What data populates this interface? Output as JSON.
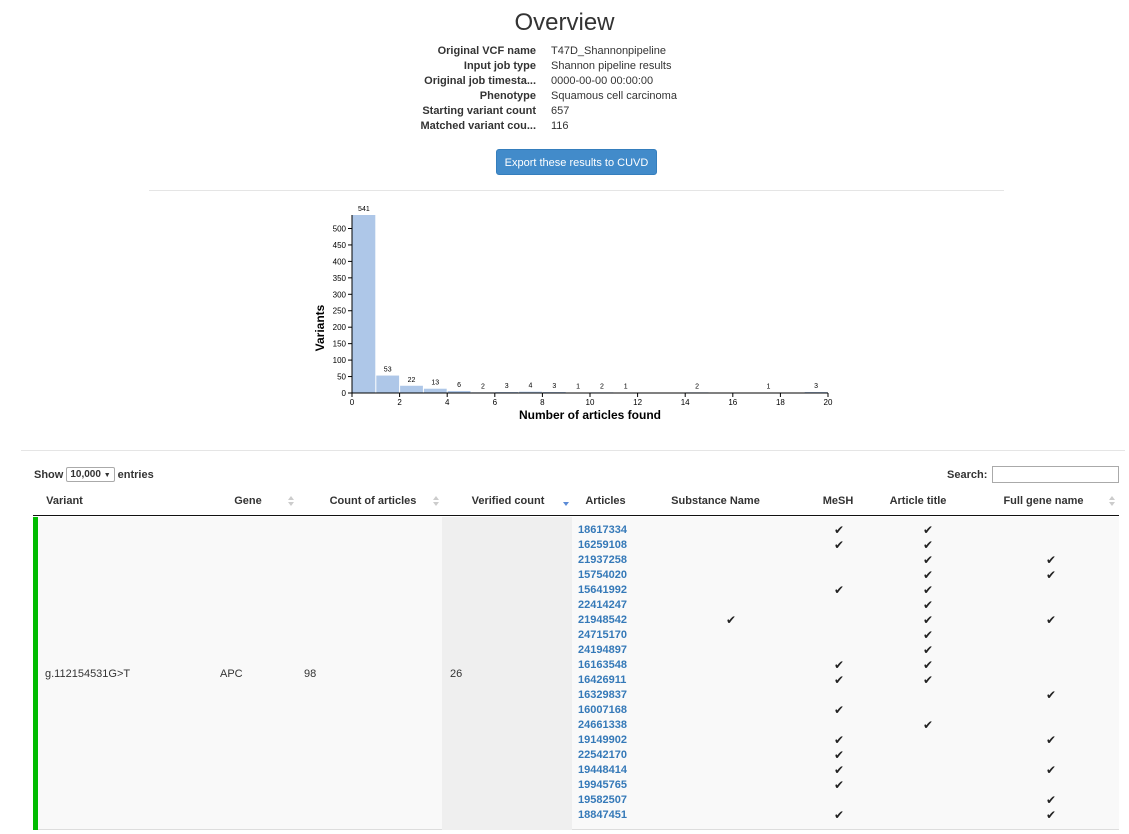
{
  "page": {
    "title": "Overview"
  },
  "info": [
    {
      "label": "Original VCF name",
      "value": "T47D_Shannonpipeline"
    },
    {
      "label": "Input job type",
      "value": "Shannon pipeline results"
    },
    {
      "label": "Original job timesta...",
      "value": "0000-00-00 00:00:00"
    },
    {
      "label": "Phenotype",
      "value": "Squamous cell carcinoma"
    },
    {
      "label": "Starting variant count",
      "value": "657"
    },
    {
      "label": "Matched variant cou...",
      "value": "116"
    }
  ],
  "export_button_label": "Export these results to CUVD",
  "chart_data": {
    "type": "bar",
    "xlabel": "Number of articles found",
    "ylabel": "Variants",
    "xlim": [
      0,
      20
    ],
    "ylim": [
      0,
      541
    ],
    "xticks": [
      0,
      2,
      4,
      6,
      8,
      10,
      12,
      14,
      16,
      18,
      20
    ],
    "yticks": [
      0,
      50,
      100,
      150,
      200,
      250,
      300,
      350,
      400,
      450,
      500
    ],
    "bins": [
      {
        "x0": 0,
        "x1": 1,
        "value": 541
      },
      {
        "x0": 1,
        "x1": 2,
        "value": 53
      },
      {
        "x0": 2,
        "x1": 3,
        "value": 22
      },
      {
        "x0": 3,
        "x1": 4,
        "value": 13
      },
      {
        "x0": 4,
        "x1": 5,
        "value": 6
      },
      {
        "x0": 5,
        "x1": 6,
        "value": 2
      },
      {
        "x0": 6,
        "x1": 7,
        "value": 3
      },
      {
        "x0": 7,
        "x1": 8,
        "value": 4
      },
      {
        "x0": 8,
        "x1": 9,
        "value": 3
      },
      {
        "x0": 9,
        "x1": 10,
        "value": 1
      },
      {
        "x0": 10,
        "x1": 11,
        "value": 2
      },
      {
        "x0": 11,
        "x1": 12,
        "value": 1
      },
      {
        "x0": 14,
        "x1": 15,
        "value": 2
      },
      {
        "x0": 17,
        "x1": 18,
        "value": 1
      },
      {
        "x0": 19,
        "x1": 20,
        "value": 3
      }
    ],
    "bar_color": "#aec7e8"
  },
  "table": {
    "show_label": "Show",
    "page_size": "10,000",
    "entries_label": "entries",
    "search_label": "Search:",
    "search_value": "",
    "columns": [
      "Variant",
      "Gene",
      "Count of articles",
      "Verified count",
      "Articles",
      "Substance Name",
      "MeSH",
      "Article title",
      "Full gene name"
    ],
    "row": {
      "variant": "g.112154531G>T",
      "gene": "APC",
      "count": "98",
      "verified": "26",
      "articles": [
        "18617334",
        "16259108",
        "21937258",
        "15754020",
        "15641992",
        "22414247",
        "21948542",
        "24715170",
        "24194897",
        "16163548",
        "16426911",
        "16329837",
        "16007168",
        "24661338",
        "19149902",
        "22542170",
        "19448414",
        "19945765",
        "19582507",
        "18847451"
      ],
      "substance_checks": [
        6
      ],
      "mesh_checks": [
        0,
        1,
        4,
        9,
        10,
        12,
        14,
        15,
        16,
        17,
        19
      ],
      "title_checks": [
        0,
        1,
        2,
        3,
        4,
        5,
        6,
        7,
        8,
        9,
        10,
        13
      ],
      "gene_checks": [
        2,
        3,
        6,
        11,
        14,
        16,
        18,
        19
      ],
      "check_glyph": "✔"
    }
  }
}
